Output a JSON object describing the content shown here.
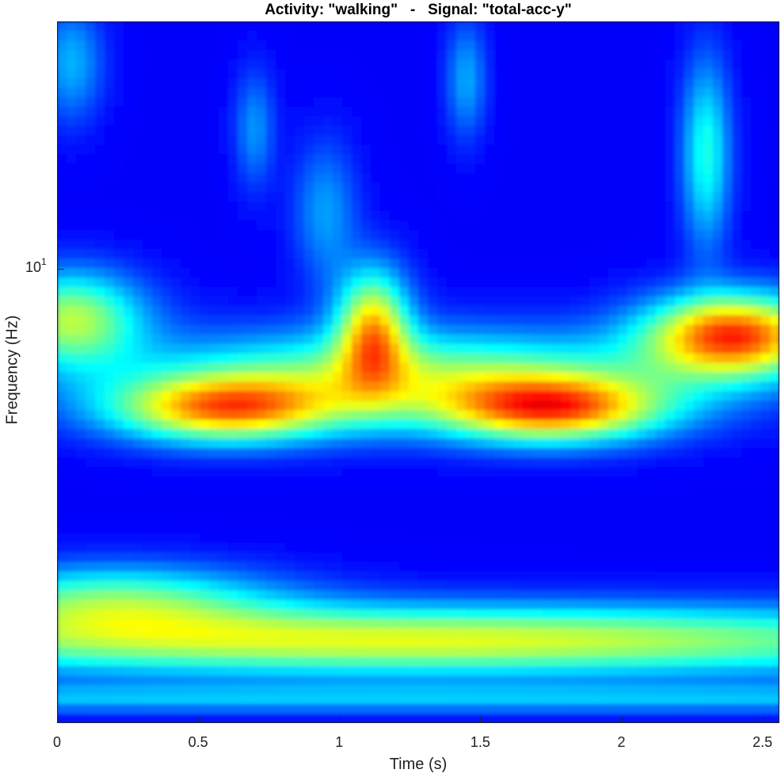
{
  "chart_data": {
    "type": "heatmap",
    "title": "Activity: \"walking\"   -   Signal: \"total-acc-y\"",
    "xlabel": "Time (s)",
    "ylabel": "Frequency (Hz)",
    "xlim": [
      0,
      2.56
    ],
    "x_ticks": [
      "0",
      "0.5",
      "1",
      "1.5",
      "2",
      "2.5"
    ],
    "x_tick_values": [
      0,
      0.5,
      1,
      1.5,
      2,
      2.5
    ],
    "y_scale": "log",
    "y_ticks": [
      {
        "base": "10",
        "exp": "1",
        "value": 10
      }
    ],
    "y_log_range": [
      0.45,
      1.3
    ],
    "colormap": "jet",
    "colormap_stops": [
      "#00008f",
      "#0000ff",
      "#00ffff",
      "#ffff00",
      "#ff0000",
      "#800000"
    ],
    "intensity_range": [
      0,
      1
    ],
    "blobs": [
      {
        "t": 0.6,
        "log_f": 0.83,
        "st": 0.28,
        "sf": 0.028,
        "a": 0.55
      },
      {
        "t": 1.75,
        "log_f": 0.83,
        "st": 0.28,
        "sf": 0.028,
        "a": 0.58
      },
      {
        "t": 1.12,
        "log_f": 0.93,
        "st": 0.09,
        "sf": 0.05,
        "a": 0.5
      },
      {
        "t": 2.4,
        "log_f": 0.92,
        "st": 0.22,
        "sf": 0.035,
        "a": 0.68
      },
      {
        "t": 0.05,
        "log_f": 0.94,
        "st": 0.18,
        "sf": 0.04,
        "a": 0.42
      },
      {
        "t": 1.25,
        "log_f": 0.87,
        "st": 0.7,
        "sf": 0.04,
        "a": 0.38
      },
      {
        "t": 1.3,
        "log_f": 0.55,
        "st": 1.6,
        "sf": 0.03,
        "a": 0.48
      },
      {
        "t": 0.2,
        "log_f": 0.6,
        "st": 0.4,
        "sf": 0.03,
        "a": 0.32
      },
      {
        "t": 0.05,
        "log_f": 1.25,
        "st": 0.08,
        "sf": 0.05,
        "a": 0.18
      },
      {
        "t": 0.7,
        "log_f": 1.17,
        "st": 0.05,
        "sf": 0.05,
        "a": 0.15
      },
      {
        "t": 1.45,
        "log_f": 1.23,
        "st": 0.05,
        "sf": 0.05,
        "a": 0.17
      },
      {
        "t": 2.3,
        "log_f": 1.14,
        "st": 0.06,
        "sf": 0.08,
        "a": 0.28
      },
      {
        "t": 0.95,
        "log_f": 1.07,
        "st": 0.08,
        "sf": 0.06,
        "a": 0.16
      }
    ]
  }
}
